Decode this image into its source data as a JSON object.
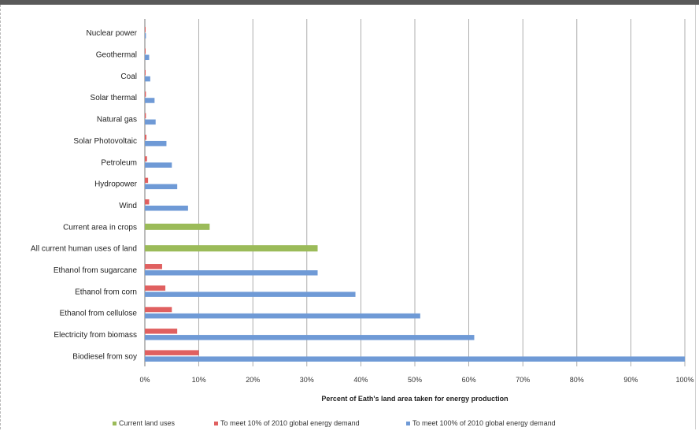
{
  "chart_data": {
    "type": "bar",
    "orientation": "horizontal",
    "title": "",
    "xlabel": "Percent of Eath's land area taken for energy production",
    "ylabel": "",
    "xlim": [
      0,
      100
    ],
    "x_ticks": [
      "0%",
      "10%",
      "20%",
      "30%",
      "40%",
      "50%",
      "60%",
      "70%",
      "80%",
      "90%",
      "100%"
    ],
    "grid": "vertical",
    "legend_position": "bottom",
    "categories": [
      "Nuclear power",
      "Geothermal",
      "Coal",
      "Solar thermal",
      "Natural gas",
      "Solar Photovoltaic",
      "Petroleum",
      "Hydropower",
      "Wind",
      "Current area in crops",
      "All current human uses of land",
      "Ethanol from sugarcane",
      "Ethanol from corn",
      "Ethanol from cellulose",
      "Electricity from biomass",
      "Biodiesel from soy"
    ],
    "series": [
      {
        "name": "Current land uses",
        "color": "#9bbb59",
        "values": [
          null,
          null,
          null,
          null,
          null,
          null,
          null,
          null,
          null,
          12,
          32,
          null,
          null,
          null,
          null,
          null
        ]
      },
      {
        "name": "To meet 10% of 2010 global energy demand",
        "color": "#e06060",
        "values": [
          0.05,
          0.1,
          0.1,
          0.2,
          0.2,
          0.3,
          0.4,
          0.6,
          0.8,
          null,
          null,
          3.2,
          3.8,
          5,
          6,
          10
        ]
      },
      {
        "name": "To meet 100% of 2010 global energy demand",
        "color": "#6f9ad6",
        "values": [
          0.2,
          0.8,
          1,
          1.8,
          2,
          4,
          5,
          6,
          8,
          null,
          null,
          32,
          39,
          51,
          61,
          100
        ]
      }
    ]
  }
}
